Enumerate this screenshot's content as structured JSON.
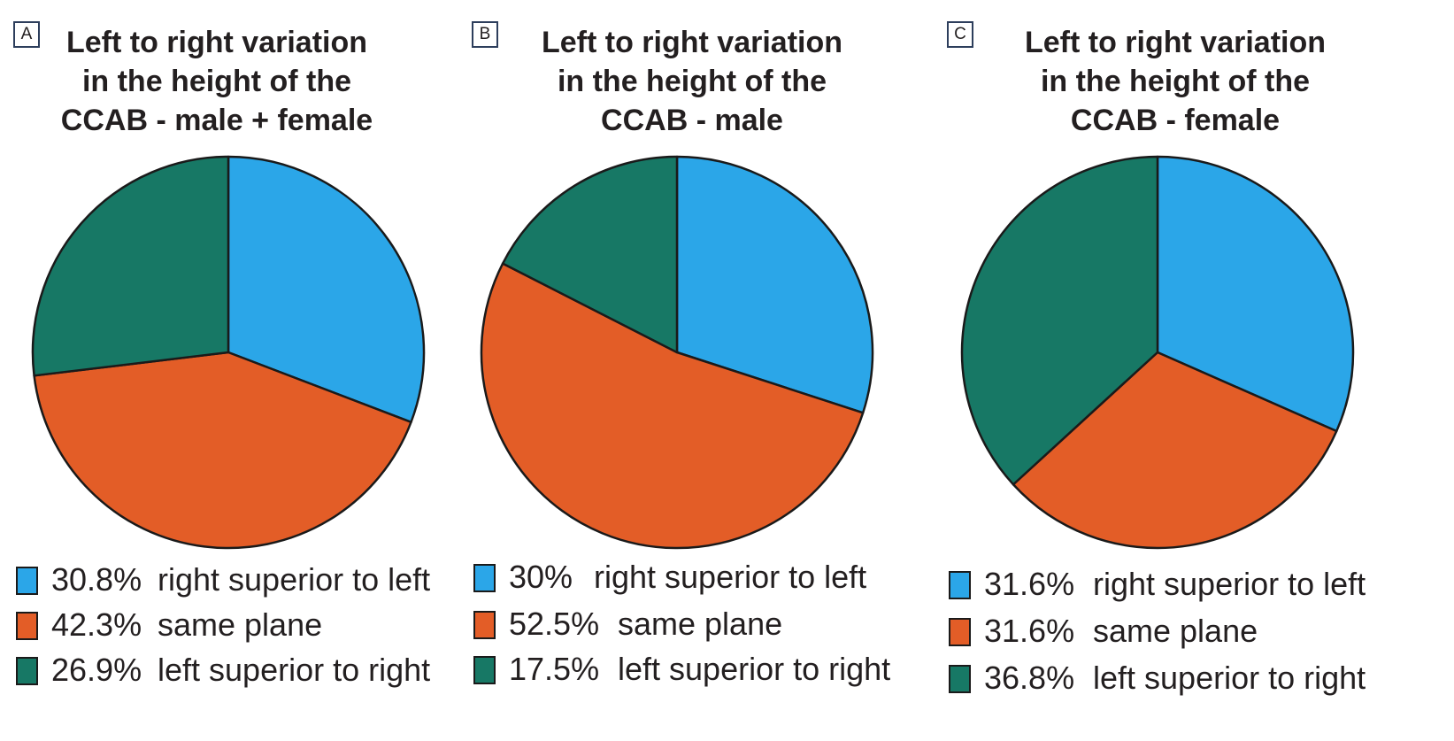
{
  "colors": {
    "right_superior_to_left": "#2ba6e8",
    "same_plane": "#e35d27",
    "left_superior_to_right": "#177865",
    "outline": "#1a1a1a"
  },
  "chart_data": [
    {
      "type": "pie",
      "panel": "A",
      "title": "Left to right variation\nin the height of the\nCCAB - male + female",
      "start_angle": "12 o'clock, clockwise",
      "slices": [
        {
          "name": "right superior to left",
          "value": 30.8,
          "label": "30.8%",
          "color": "#2ba6e8"
        },
        {
          "name": "same plane",
          "value": 42.3,
          "label": "42.3%",
          "color": "#e35d27"
        },
        {
          "name": "left superior to right",
          "value": 26.9,
          "label": "26.9%",
          "color": "#177865"
        }
      ],
      "legend_placement": "bottom"
    },
    {
      "type": "pie",
      "panel": "B",
      "title": "Left to right variation\nin the height of the\nCCAB - male",
      "start_angle": "12 o'clock, clockwise",
      "slices": [
        {
          "name": "right superior to left",
          "value": 30,
          "label": "30%",
          "color": "#2ba6e8"
        },
        {
          "name": "same plane",
          "value": 52.5,
          "label": "52.5%",
          "color": "#e35d27"
        },
        {
          "name": "left superior to right",
          "value": 17.5,
          "label": "17.5%",
          "color": "#177865"
        }
      ],
      "legend_placement": "bottom"
    },
    {
      "type": "pie",
      "panel": "C",
      "title": "Left to right variation\nin the height of the\nCCAB - female",
      "start_angle": "12 o'clock, clockwise",
      "slices": [
        {
          "name": "right superior to left",
          "value": 31.6,
          "label": "31.6%",
          "color": "#2ba6e8"
        },
        {
          "name": "same plane",
          "value": 31.6,
          "label": "31.6%",
          "color": "#e35d27"
        },
        {
          "name": "left superior to right",
          "value": 36.8,
          "label": "36.8%",
          "color": "#177865"
        }
      ],
      "legend_placement": "bottom"
    }
  ]
}
